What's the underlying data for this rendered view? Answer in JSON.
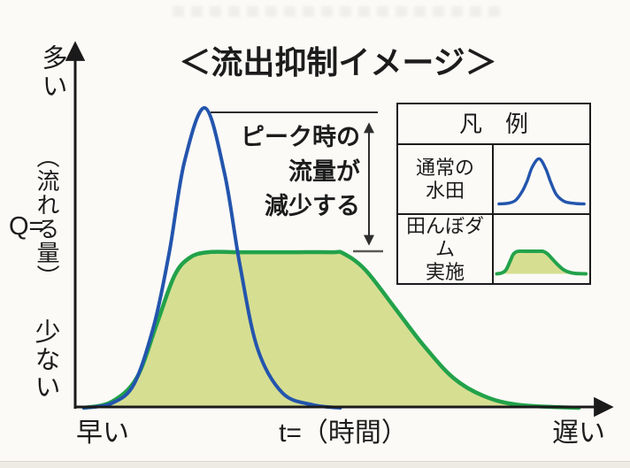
{
  "title": "＜流出抑制イメージ＞",
  "y_axis": {
    "top_label": "多い",
    "unit_prefix": "Q=",
    "unit_vertical": "（流れる量）",
    "bottom_label": "少ない"
  },
  "x_axis": {
    "left_label": "早い",
    "center_label": "t=（時間）",
    "right_label": "遅い"
  },
  "annotation": {
    "line1": "ピーク時の",
    "line2": "流量が",
    "line3": "減少する"
  },
  "legend": {
    "header": "凡　例",
    "rows": [
      {
        "label_lines": [
          "通常の",
          "水田"
        ],
        "series": "normal-paddy"
      },
      {
        "label_lines": [
          "田んぼダム",
          "実施"
        ],
        "series": "paddy-dam"
      }
    ]
  },
  "colors": {
    "blue": "#2355ad",
    "green": "#22a24a",
    "fill": "#d6de92",
    "ink": "#1c1c1c"
  },
  "chart_data": {
    "type": "area",
    "title": "＜流出抑制イメージ＞",
    "xlabel": "t=（時間）",
    "ylabel": "Q=（流れる量）",
    "x_qualitative_range": [
      "早い",
      "遅い"
    ],
    "y_qualitative_range": [
      "少ない",
      "多い"
    ],
    "grid": false,
    "legend_position": "upper right",
    "annotation": "ピーク時の流量が減少する",
    "series": [
      {
        "name": "通常の水田",
        "style": "line",
        "color": "#2355ad",
        "points": [
          [
            0.005,
            0
          ],
          [
            0.06,
            0.015
          ],
          [
            0.105,
            0.08
          ],
          [
            0.145,
            0.28
          ],
          [
            0.175,
            0.52
          ],
          [
            0.205,
            0.82
          ],
          [
            0.246,
            1.0
          ],
          [
            0.285,
            0.78
          ],
          [
            0.315,
            0.48
          ],
          [
            0.35,
            0.2
          ],
          [
            0.4,
            0.05
          ],
          [
            0.46,
            0.01
          ],
          [
            0.515,
            0
          ]
        ]
      },
      {
        "name": "田んぼダム実施",
        "style": "filled-line",
        "color": "#22a24a",
        "fill_color": "#d6de92",
        "points": [
          [
            0.005,
            0
          ],
          [
            0.06,
            0.02
          ],
          [
            0.11,
            0.1
          ],
          [
            0.15,
            0.28
          ],
          [
            0.185,
            0.44
          ],
          [
            0.215,
            0.5
          ],
          [
            0.252,
            0.519
          ],
          [
            0.32,
            0.519
          ],
          [
            0.42,
            0.519
          ],
          [
            0.5,
            0.519
          ],
          [
            0.521,
            0.515
          ],
          [
            0.565,
            0.46
          ],
          [
            0.625,
            0.33
          ],
          [
            0.68,
            0.21
          ],
          [
            0.74,
            0.1
          ],
          [
            0.8,
            0.04
          ],
          [
            0.87,
            0.01
          ],
          [
            0.99,
            0
          ]
        ]
      }
    ]
  }
}
